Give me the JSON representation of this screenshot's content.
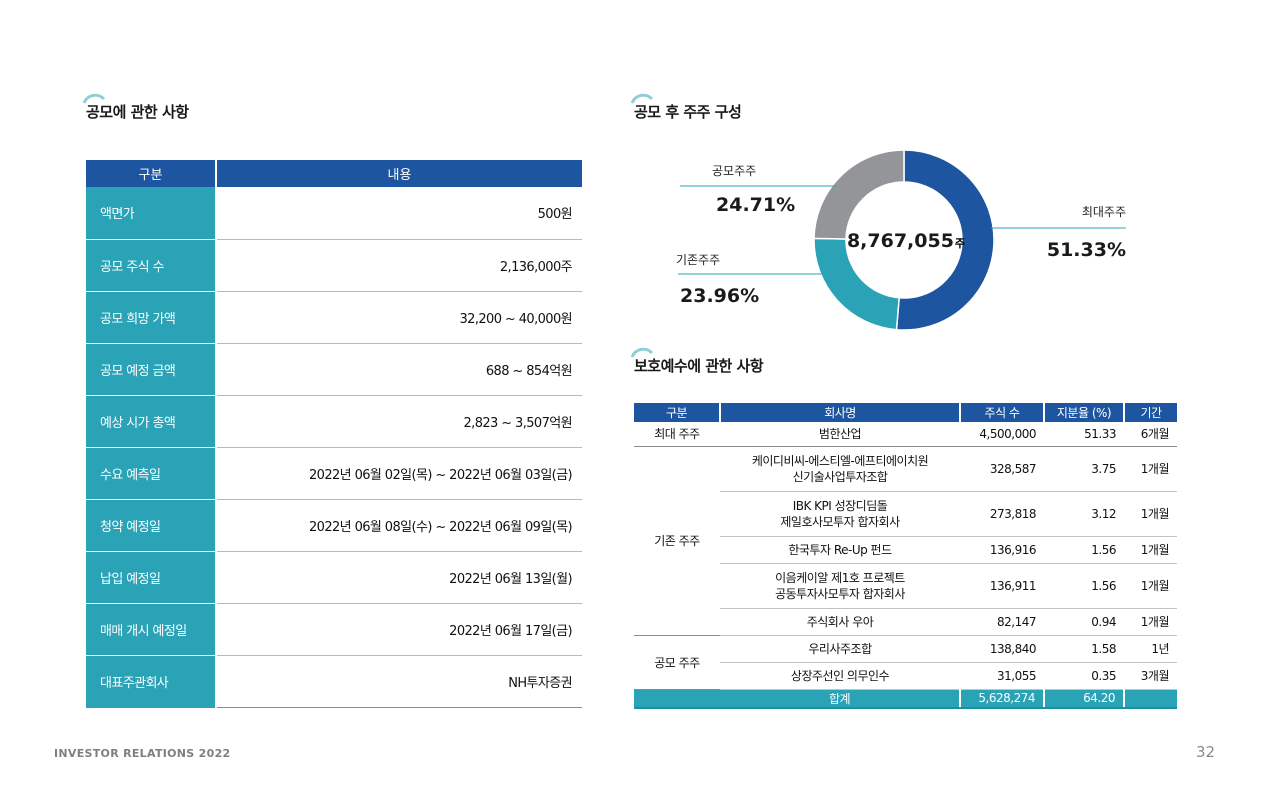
{
  "offer": {
    "title": "공모에 관한 사항",
    "headers": [
      "구분",
      "내용"
    ],
    "rows": [
      {
        "label": "액면가",
        "value": "500원"
      },
      {
        "label": "공모 주식 수",
        "value": "2,136,000주"
      },
      {
        "label": "공모 희망 가액",
        "value": "32,200 ~ 40,000원"
      },
      {
        "label": "공모 예정 금액",
        "value": "688 ~ 854억원"
      },
      {
        "label": "예상 시가 총액",
        "value": "2,823 ~ 3,507억원"
      },
      {
        "label": "수요 예측일",
        "value": "2022년 06월 02일(목) ~ 2022년 06월 03일(금)"
      },
      {
        "label": "청약 예정일",
        "value": "2022년 06월 08일(수) ~ 2022년 06월 09일(목)"
      },
      {
        "label": "납입 예정일",
        "value": "2022년 06월 13일(월)"
      },
      {
        "label": "매매 개시 예정일",
        "value": "2022년 06월 17일(금)"
      },
      {
        "label": "대표주관회사",
        "value": "NH투자증권"
      }
    ]
  },
  "shareholders": {
    "title": "공모 후 주주 구성",
    "total_shares": "8,767,055",
    "total_unit": "주"
  },
  "chart_data": {
    "type": "pie",
    "title": "공모 후 주주 구성",
    "center_label": "8,767,055주",
    "slices": [
      {
        "name": "최대주주",
        "value": 51.33,
        "label": "51.33%",
        "color": "#1e55a0"
      },
      {
        "name": "기존주주",
        "value": 23.96,
        "label": "23.96%",
        "color": "#2aa3b7"
      },
      {
        "name": "공모주주",
        "value": 24.71,
        "label": "24.71%",
        "color": "#939598"
      }
    ]
  },
  "lockup": {
    "title": "보호예수에 관한 사항",
    "headers": [
      "구분",
      "회사명",
      "주식 수",
      "지분율 (%)",
      "기간"
    ],
    "largest": {
      "group": "최대 주주",
      "company": "범한산업",
      "shares": "4,500,000",
      "ratio": "51.33",
      "period": "6개월"
    },
    "existing_group": "기존 주주",
    "existing": [
      {
        "line1": "케이디비씨-에스티엘-에프티에이치원",
        "line2": "신기술사업투자조합",
        "shares": "328,587",
        "ratio": "3.75",
        "period": "1개월"
      },
      {
        "line1": "IBK KPI 성장디딤돌",
        "line2": "제일호사모투자 합자회사",
        "shares": "273,818",
        "ratio": "3.12",
        "period": "1개월"
      },
      {
        "line1": "한국투자 Re-Up 펀드",
        "line2": "",
        "shares": "136,916",
        "ratio": "1.56",
        "period": "1개월"
      },
      {
        "line1": "이음케이알 제1호 프로젝트",
        "line2": "공동투자사모투자 합자회사",
        "shares": "136,911",
        "ratio": "1.56",
        "period": "1개월"
      },
      {
        "line1": "주식회사 우아",
        "line2": "",
        "shares": "82,147",
        "ratio": "0.94",
        "period": "1개월"
      }
    ],
    "public_group": "공모 주주",
    "public": [
      {
        "company": "우리사주조합",
        "shares": "138,840",
        "ratio": "1.58",
        "period": "1년"
      },
      {
        "company": "상장주선인 의무인수",
        "shares": "31,055",
        "ratio": "0.35",
        "period": "3개월"
      }
    ],
    "total": {
      "label": "합계",
      "shares": "5,628,274",
      "ratio": "64.20",
      "period": ""
    }
  },
  "footer": {
    "left": "INVESTOR RELATIONS 2022",
    "page": "32"
  }
}
